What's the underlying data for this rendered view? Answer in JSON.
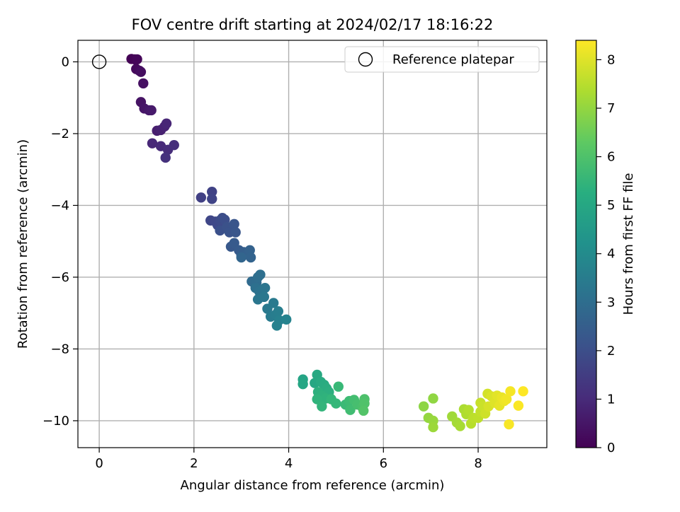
{
  "chart_data": {
    "type": "scatter",
    "title": "FOV centre drift starting at 2024/02/17 18:16:22",
    "xlabel": "Angular distance from reference (arcmin)",
    "ylabel": "Rotation from reference (arcmin)",
    "xlim": [
      -0.45,
      9.45
    ],
    "ylim": [
      -10.75,
      0.6
    ],
    "xticks": [
      0,
      2,
      4,
      6,
      8
    ],
    "yticks": [
      0,
      -2,
      -4,
      -6,
      -8,
      -10
    ],
    "xtick_labels": [
      "0",
      "2",
      "4",
      "6",
      "8"
    ],
    "ytick_labels": [
      "0",
      "−2",
      "−4",
      "−6",
      "−8",
      "−10"
    ],
    "grid": true,
    "legend": {
      "placement": "top-right",
      "entries": [
        "Reference platepar"
      ]
    },
    "colorbar": {
      "label": "Hours from first FF file",
      "range": [
        0,
        8.4
      ],
      "ticks": [
        0,
        1,
        2,
        3,
        4,
        5,
        6,
        7,
        8
      ],
      "tick_labels": [
        "0",
        "1",
        "2",
        "3",
        "4",
        "5",
        "6",
        "7",
        "8"
      ],
      "colormap": "viridis"
    },
    "reference": {
      "x": 0,
      "y": 0
    },
    "series": [
      {
        "points": [
          [
            0.68,
            0.08,
            0.0
          ],
          [
            0.75,
            0.07,
            0.06
          ],
          [
            0.8,
            0.07,
            0.12
          ],
          [
            0.78,
            -0.2,
            0.18
          ],
          [
            0.85,
            -0.25,
            0.24
          ],
          [
            0.88,
            -0.28,
            0.3
          ],
          [
            0.93,
            -0.6,
            0.36
          ],
          [
            0.88,
            -1.12,
            0.42
          ],
          [
            0.95,
            -1.3,
            0.48
          ],
          [
            1.05,
            -1.35,
            0.54
          ],
          [
            1.1,
            -1.35,
            0.6
          ],
          [
            1.22,
            -1.92,
            0.7
          ],
          [
            1.3,
            -1.9,
            0.76
          ],
          [
            1.38,
            -1.8,
            0.82
          ],
          [
            1.42,
            -1.72,
            0.88
          ],
          [
            1.12,
            -2.27,
            0.94
          ],
          [
            1.3,
            -2.35,
            1.0
          ],
          [
            1.45,
            -2.45,
            1.06
          ],
          [
            1.58,
            -2.32,
            1.12
          ],
          [
            1.4,
            -2.67,
            1.18
          ],
          [
            2.15,
            -3.78,
            1.6
          ],
          [
            2.38,
            -3.62,
            1.65
          ],
          [
            2.38,
            -3.82,
            1.7
          ],
          [
            2.35,
            -4.42,
            1.75
          ],
          [
            2.45,
            -4.45,
            1.8
          ],
          [
            2.5,
            -4.55,
            1.85
          ],
          [
            2.55,
            -4.42,
            1.9
          ],
          [
            2.6,
            -4.35,
            1.95
          ],
          [
            2.65,
            -4.4,
            2.0
          ],
          [
            2.55,
            -4.7,
            2.05
          ],
          [
            2.7,
            -4.6,
            2.1
          ],
          [
            2.75,
            -4.75,
            2.15
          ],
          [
            2.85,
            -4.52,
            2.2
          ],
          [
            2.88,
            -4.75,
            2.25
          ],
          [
            2.78,
            -5.15,
            2.3
          ],
          [
            2.85,
            -5.05,
            2.35
          ],
          [
            2.95,
            -5.25,
            2.4
          ],
          [
            3.0,
            -5.38,
            2.45
          ],
          [
            3.05,
            -5.3,
            2.5
          ],
          [
            3.12,
            -5.35,
            2.55
          ],
          [
            3.18,
            -5.25,
            2.6
          ],
          [
            3.2,
            -5.45,
            2.65
          ],
          [
            3.0,
            -5.45,
            2.7
          ],
          [
            3.22,
            -6.12,
            2.9
          ],
          [
            3.32,
            -6.15,
            2.95
          ],
          [
            3.35,
            -6.0,
            3.0
          ],
          [
            3.4,
            -5.93,
            3.05
          ],
          [
            3.3,
            -6.3,
            3.1
          ],
          [
            3.38,
            -6.4,
            3.15
          ],
          [
            3.45,
            -6.35,
            3.2
          ],
          [
            3.5,
            -6.3,
            3.25
          ],
          [
            3.35,
            -6.62,
            3.3
          ],
          [
            3.48,
            -6.55,
            3.35
          ],
          [
            3.55,
            -6.88,
            3.4
          ],
          [
            3.68,
            -6.72,
            3.45
          ],
          [
            3.62,
            -7.1,
            3.5
          ],
          [
            3.72,
            -7.05,
            3.55
          ],
          [
            3.78,
            -6.95,
            3.6
          ],
          [
            3.8,
            -7.2,
            3.65
          ],
          [
            3.75,
            -7.35,
            3.7
          ],
          [
            3.95,
            -7.18,
            3.75
          ],
          [
            4.3,
            -8.85,
            4.9
          ],
          [
            4.3,
            -8.98,
            4.95
          ],
          [
            4.55,
            -8.95,
            5.0
          ],
          [
            4.6,
            -8.72,
            5.05
          ],
          [
            4.68,
            -8.92,
            5.1
          ],
          [
            4.75,
            -9.0,
            5.15
          ],
          [
            4.8,
            -9.1,
            5.2
          ],
          [
            4.85,
            -9.2,
            5.25
          ],
          [
            4.62,
            -9.2,
            5.3
          ],
          [
            4.7,
            -9.3,
            5.35
          ],
          [
            4.78,
            -9.38,
            5.4
          ],
          [
            4.6,
            -9.4,
            5.45
          ],
          [
            4.7,
            -9.6,
            5.5
          ],
          [
            4.9,
            -9.4,
            5.55
          ],
          [
            5.0,
            -9.52,
            5.6
          ],
          [
            5.05,
            -9.05,
            5.65
          ],
          [
            5.2,
            -9.55,
            5.7
          ],
          [
            5.28,
            -9.45,
            5.75
          ],
          [
            5.3,
            -9.7,
            5.8
          ],
          [
            5.38,
            -9.42,
            5.85
          ],
          [
            5.45,
            -9.55,
            5.9
          ],
          [
            5.55,
            -9.62,
            5.95
          ],
          [
            5.6,
            -9.4,
            6.0
          ],
          [
            5.6,
            -9.52,
            6.05
          ],
          [
            5.58,
            -9.72,
            6.1
          ],
          [
            6.85,
            -9.6,
            6.95
          ],
          [
            7.05,
            -9.38,
            7.0
          ],
          [
            6.95,
            -9.92,
            7.05
          ],
          [
            7.05,
            -10.0,
            7.1
          ],
          [
            7.05,
            -10.18,
            7.15
          ],
          [
            7.45,
            -9.88,
            7.2
          ],
          [
            7.55,
            -10.05,
            7.25
          ],
          [
            7.62,
            -10.15,
            7.3
          ],
          [
            7.7,
            -9.68,
            7.35
          ],
          [
            7.75,
            -9.82,
            7.4
          ],
          [
            7.8,
            -9.7,
            7.45
          ],
          [
            7.85,
            -10.08,
            7.5
          ],
          [
            7.9,
            -9.92,
            7.55
          ],
          [
            8.0,
            -9.92,
            7.6
          ],
          [
            8.05,
            -9.75,
            7.65
          ],
          [
            8.05,
            -9.5,
            7.7
          ],
          [
            8.1,
            -9.6,
            7.75
          ],
          [
            8.15,
            -9.8,
            7.8
          ],
          [
            8.2,
            -9.25,
            7.85
          ],
          [
            8.22,
            -9.6,
            7.9
          ],
          [
            8.28,
            -9.32,
            7.95
          ],
          [
            8.35,
            -9.5,
            8.0
          ],
          [
            8.4,
            -9.3,
            8.05
          ],
          [
            8.45,
            -9.58,
            8.1
          ],
          [
            8.5,
            -9.35,
            8.15
          ],
          [
            8.55,
            -9.45,
            8.2
          ],
          [
            8.6,
            -9.4,
            8.25
          ],
          [
            8.68,
            -9.18,
            8.3
          ],
          [
            8.65,
            -10.1,
            8.32
          ],
          [
            8.85,
            -9.58,
            8.36
          ],
          [
            8.95,
            -9.18,
            8.4
          ]
        ]
      }
    ]
  }
}
